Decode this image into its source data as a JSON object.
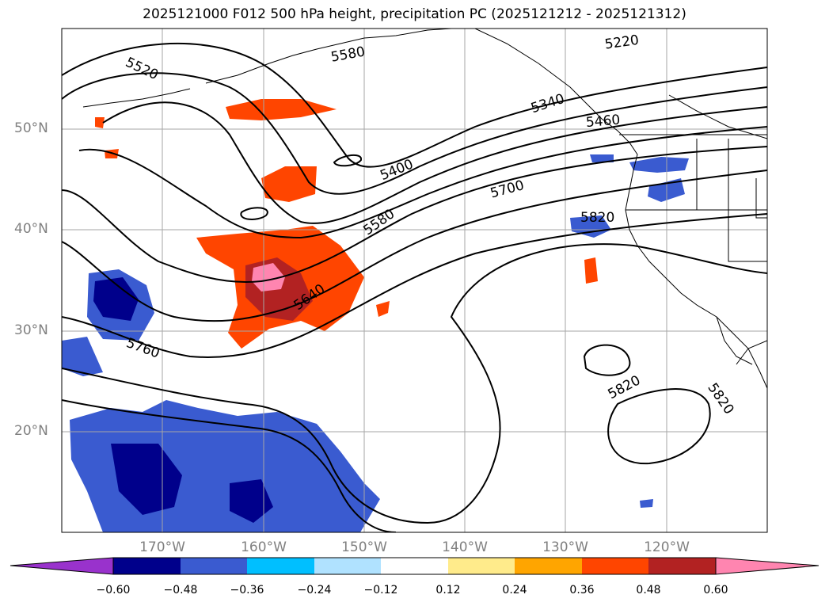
{
  "title": "2025121000 F012 500 hPa height, precipitation PC (2025121212 - 2025121312)",
  "map": {
    "lat_labels": [
      "50°N",
      "40°N",
      "30°N",
      "20°N"
    ],
    "lon_labels": [
      "170°W",
      "160°W",
      "150°W",
      "140°W",
      "130°W",
      "120°W"
    ],
    "contour_labels": [
      "5520",
      "5580",
      "5220",
      "5340",
      "5460",
      "5400",
      "5700",
      "5580",
      "5820",
      "5640",
      "5760",
      "5820",
      "5820"
    ]
  },
  "colorbar": {
    "ticks": [
      "−0.60",
      "−0.48",
      "−0.36",
      "−0.24",
      "−0.12",
      "0.12",
      "0.24",
      "0.36",
      "0.48",
      "0.60"
    ],
    "colors": [
      "#9932cc",
      "#00008b",
      "#3a5bd0",
      "#00bfff",
      "#b0e2ff",
      "#ffffff",
      "#ffeb8b",
      "#ffa500",
      "#ff4500",
      "#b22222",
      "#ff85b0"
    ]
  },
  "colors": {
    "land_outline": "#000000",
    "gridline": "#a6a6a6",
    "contour": "#000000"
  }
}
